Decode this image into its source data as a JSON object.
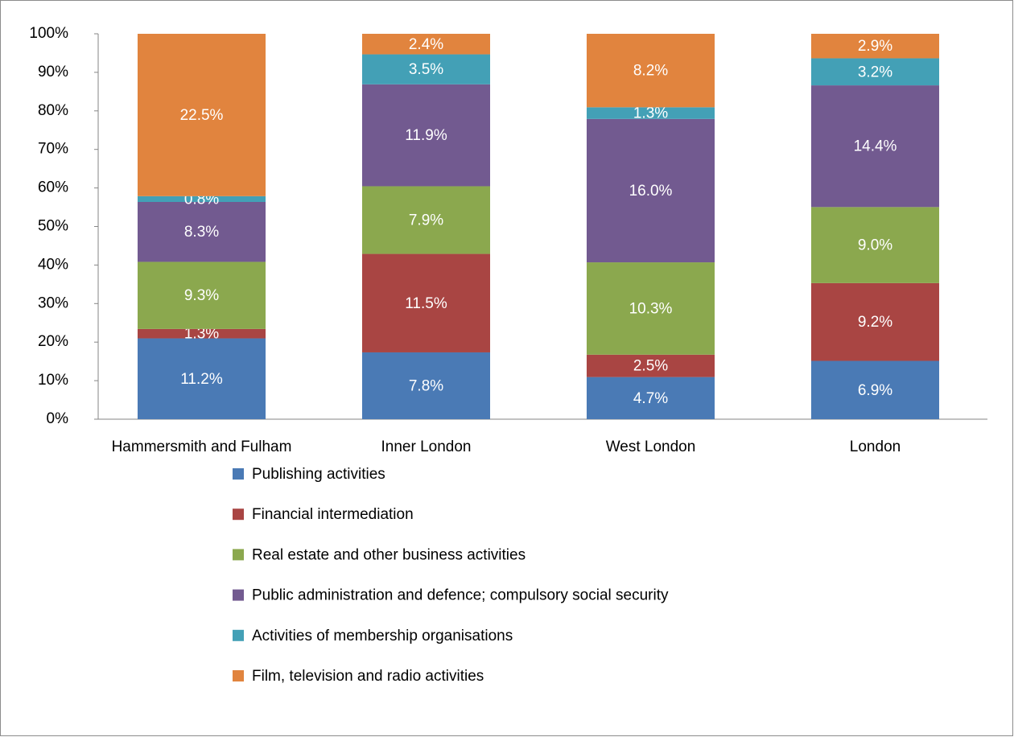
{
  "chart_data": {
    "type": "bar",
    "stacking": "percent",
    "categories": [
      "Hammersmith and Fulham",
      "Inner London",
      "West London",
      "London"
    ],
    "series": [
      {
        "name": "Publishing activities",
        "color": "#4a7ab5",
        "values": [
          11.2,
          7.8,
          4.7,
          6.9
        ],
        "value_labels": [
          "11.2%",
          "7.8%",
          "4.7%",
          "6.9%"
        ]
      },
      {
        "name": "Financial intermediation",
        "color": "#a94543",
        "values": [
          1.3,
          11.5,
          2.5,
          9.2
        ],
        "value_labels": [
          "1.3%",
          "11.5%",
          "2.5%",
          "9.2%"
        ]
      },
      {
        "name": "Real estate and other business activities",
        "color": "#8ba84e",
        "values": [
          9.3,
          7.9,
          10.3,
          9.0
        ],
        "value_labels": [
          "9.3%",
          "7.9%",
          "10.3%",
          "9.0%"
        ]
      },
      {
        "name": "Public administration and defence; compulsory social security",
        "color": "#725a90",
        "values": [
          8.3,
          11.9,
          16.0,
          14.4
        ],
        "value_labels": [
          "8.3%",
          "11.9%",
          "16.0%",
          "14.4%"
        ]
      },
      {
        "name": "Activities of membership organisations",
        "color": "#43a0b6",
        "values": [
          0.8,
          3.5,
          1.3,
          3.2
        ],
        "value_labels": [
          "0.8%",
          "3.5%",
          "1.3%",
          "3.2%"
        ]
      },
      {
        "name": "Film, television and radio activities",
        "color": "#e1843e",
        "values": [
          22.5,
          2.4,
          8.2,
          2.9
        ],
        "value_labels": [
          "22.5%",
          "2.4%",
          "8.2%",
          "2.9%"
        ]
      }
    ],
    "ylim": [
      0,
      100
    ],
    "yticks": [
      {
        "value": 0,
        "label": "0%"
      },
      {
        "value": 10,
        "label": "10%"
      },
      {
        "value": 20,
        "label": "20%"
      },
      {
        "value": 30,
        "label": "30%"
      },
      {
        "value": 40,
        "label": "40%"
      },
      {
        "value": 50,
        "label": "50%"
      },
      {
        "value": 60,
        "label": "60%"
      },
      {
        "value": 70,
        "label": "70%"
      },
      {
        "value": 80,
        "label": "80%"
      },
      {
        "value": 90,
        "label": "90%"
      },
      {
        "value": 100,
        "label": "100%"
      }
    ],
    "legend": "bottom"
  }
}
